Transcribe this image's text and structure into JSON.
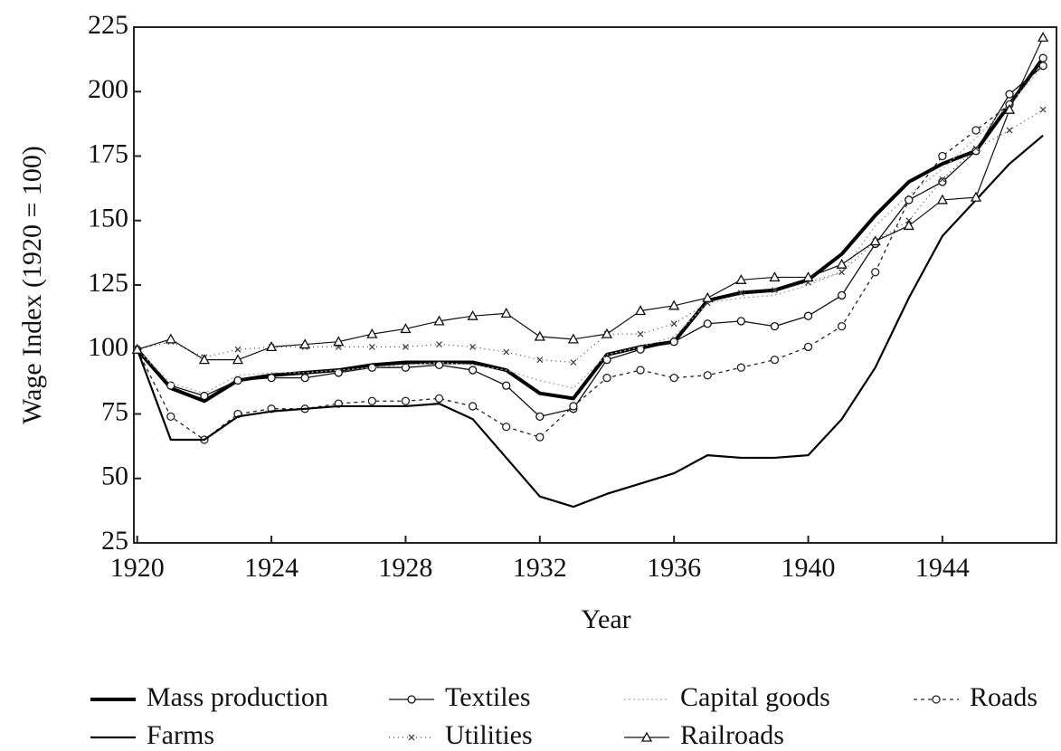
{
  "chart_data": {
    "type": "line",
    "x_label": "Year",
    "y_label": "Wage Index (1920 = 100)",
    "x": [
      1920,
      1921,
      1922,
      1923,
      1924,
      1925,
      1926,
      1927,
      1928,
      1929,
      1930,
      1931,
      1932,
      1933,
      1934,
      1935,
      1936,
      1937,
      1938,
      1939,
      1940,
      1941,
      1942,
      1943,
      1944,
      1945,
      1946,
      1947
    ],
    "xlim": [
      1919.9,
      1947.4
    ],
    "xticks": [
      1920,
      1924,
      1928,
      1932,
      1936,
      1940,
      1944
    ],
    "ylim": [
      25,
      225
    ],
    "yticks": [
      25,
      50,
      75,
      100,
      125,
      150,
      175,
      200,
      225
    ],
    "grid": false,
    "series": [
      {
        "name": "Mass production",
        "color": "#000000",
        "width": 4,
        "dash": "",
        "marker": "none",
        "values": [
          100,
          85,
          80,
          88,
          90,
          91,
          92,
          94,
          95,
          95,
          95,
          92,
          83,
          81,
          98,
          101,
          103,
          119,
          122,
          123,
          127,
          137,
          152,
          165,
          172,
          177,
          195,
          213
        ]
      },
      {
        "name": "Textiles",
        "color": "#111111",
        "width": 1.3,
        "dash": "",
        "marker": "circle",
        "values": [
          100,
          86,
          82,
          88,
          89,
          89,
          91,
          93,
          93,
          94,
          92,
          86,
          74,
          77,
          96,
          100,
          103,
          110,
          111,
          109,
          113,
          121,
          141,
          158,
          165,
          177,
          199,
          210
        ]
      },
      {
        "name": "Capital goods",
        "color": "#aaaaaa",
        "width": 1.3,
        "dash": "2 3",
        "marker": "none",
        "values": [
          100,
          87,
          83,
          90,
          91,
          91,
          92,
          93,
          94,
          95,
          94,
          92,
          88,
          85,
          98,
          101,
          105,
          118,
          120,
          121,
          125,
          130,
          148,
          160,
          170,
          182,
          195,
          210
        ]
      },
      {
        "name": "Roads",
        "color": "#222222",
        "width": 1.3,
        "dash": "4 4",
        "marker": "circle",
        "values": [
          100,
          74,
          65,
          75,
          77,
          77,
          79,
          80,
          80,
          81,
          78,
          70,
          66,
          78,
          89,
          92,
          89,
          90,
          93,
          96,
          101,
          109,
          130,
          158,
          175,
          185,
          195,
          213
        ]
      },
      {
        "name": "Farms",
        "color": "#000000",
        "width": 2.2,
        "dash": "",
        "marker": "none",
        "values": [
          100,
          65,
          65,
          74,
          76,
          77,
          78,
          78,
          78,
          79,
          73,
          58,
          43,
          39,
          44,
          48,
          52,
          59,
          58,
          58,
          59,
          73,
          93,
          120,
          144,
          158,
          172,
          183
        ]
      },
      {
        "name": "Utilities",
        "color": "#444444",
        "width": 1.2,
        "dash": "1 4",
        "marker": "x",
        "values": [
          100,
          103,
          97,
          100,
          101,
          101,
          101,
          101,
          101,
          102,
          101,
          99,
          96,
          95,
          106,
          106,
          110,
          118,
          122,
          123,
          126,
          130,
          142,
          150,
          166,
          178,
          185,
          193
        ]
      },
      {
        "name": "Railroads",
        "color": "#111111",
        "width": 1.2,
        "dash": "",
        "marker": "triangle",
        "values": [
          100,
          104,
          96,
          96,
          101,
          102,
          103,
          106,
          108,
          111,
          113,
          114,
          105,
          104,
          106,
          115,
          117,
          120,
          127,
          128,
          128,
          133,
          142,
          148,
          158,
          159,
          193,
          221
        ]
      }
    ]
  }
}
